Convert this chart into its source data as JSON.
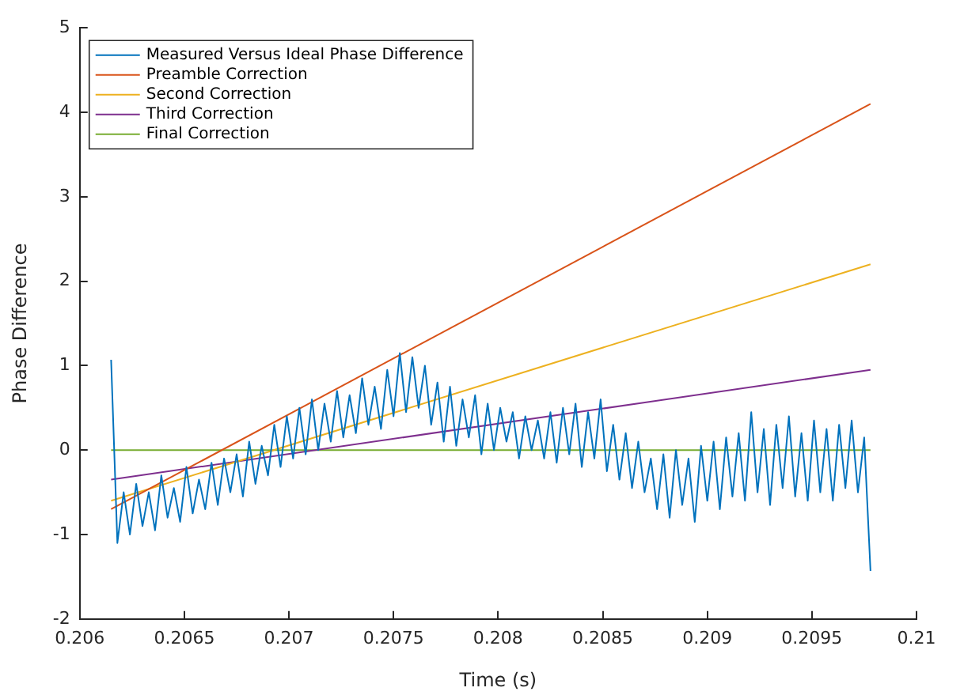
{
  "chart_data": {
    "type": "line",
    "xlabel": "Time (s)",
    "ylabel": "Phase Difference",
    "xlim": [
      0.206,
      0.21
    ],
    "xticks": [
      0.206,
      0.2065,
      0.207,
      0.2075,
      0.208,
      0.2085,
      0.209,
      0.2095,
      0.21
    ],
    "ylim": [
      -2,
      5
    ],
    "yticks": [
      -2,
      -1,
      0,
      1,
      2,
      3,
      4,
      5
    ],
    "grid": false,
    "legend": "top left",
    "marker": "none",
    "line_style": "solid",
    "series": [
      {
        "name": "Measured Versus Ideal Phase Difference",
        "color": "#0072bd",
        "x": [
          0.20615,
          0.20618,
          0.20621,
          0.20624,
          0.20627,
          0.2063,
          0.20633,
          0.20636,
          0.20639,
          0.20642,
          0.20645,
          0.20648,
          0.20651,
          0.20654,
          0.20657,
          0.2066,
          0.20663,
          0.20666,
          0.20669,
          0.20672,
          0.20675,
          0.20678,
          0.20681,
          0.20684,
          0.20687,
          0.2069,
          0.20693,
          0.20696,
          0.20699,
          0.20702,
          0.20705,
          0.20708,
          0.20711,
          0.20714,
          0.20717,
          0.2072,
          0.20723,
          0.20726,
          0.20729,
          0.20732,
          0.20735,
          0.20738,
          0.20741,
          0.20744,
          0.20747,
          0.2075,
          0.20753,
          0.20756,
          0.20759,
          0.20762,
          0.20765,
          0.20768,
          0.20771,
          0.20774,
          0.20777,
          0.2078,
          0.20783,
          0.20786,
          0.20789,
          0.20792,
          0.20795,
          0.20798,
          0.20801,
          0.20804,
          0.20807,
          0.2081,
          0.20813,
          0.20816,
          0.20819,
          0.20822,
          0.20825,
          0.20828,
          0.20831,
          0.20834,
          0.20837,
          0.2084,
          0.20843,
          0.20846,
          0.20849,
          0.20852,
          0.20855,
          0.20858,
          0.20861,
          0.20864,
          0.20867,
          0.2087,
          0.20873,
          0.20876,
          0.20879,
          0.20882,
          0.20885,
          0.20888,
          0.20891,
          0.20894,
          0.20897,
          0.209,
          0.20903,
          0.20906,
          0.20909,
          0.20912,
          0.20915,
          0.20918,
          0.20921,
          0.20924,
          0.20927,
          0.2093,
          0.20933,
          0.20936,
          0.20939,
          0.20942,
          0.20945,
          0.20948,
          0.20951,
          0.20954,
          0.20957,
          0.2096,
          0.20963,
          0.20966,
          0.20969,
          0.20972,
          0.20975,
          0.20978
        ],
        "values": [
          1.07,
          -1.1,
          -0.5,
          -1.0,
          -0.4,
          -0.9,
          -0.5,
          -0.95,
          -0.3,
          -0.8,
          -0.45,
          -0.85,
          -0.2,
          -0.75,
          -0.35,
          -0.7,
          -0.15,
          -0.65,
          -0.1,
          -0.5,
          -0.05,
          -0.55,
          0.1,
          -0.4,
          0.05,
          -0.3,
          0.3,
          -0.2,
          0.4,
          -0.1,
          0.5,
          -0.05,
          0.6,
          0.0,
          0.55,
          0.1,
          0.7,
          0.15,
          0.65,
          0.2,
          0.85,
          0.3,
          0.75,
          0.25,
          0.95,
          0.4,
          1.15,
          0.45,
          1.1,
          0.5,
          1.0,
          0.3,
          0.8,
          0.1,
          0.75,
          0.05,
          0.6,
          0.15,
          0.65,
          -0.05,
          0.55,
          0.0,
          0.5,
          0.1,
          0.45,
          -0.1,
          0.4,
          0.0,
          0.35,
          -0.1,
          0.45,
          -0.15,
          0.5,
          -0.05,
          0.55,
          -0.2,
          0.45,
          -0.1,
          0.6,
          -0.25,
          0.3,
          -0.35,
          0.2,
          -0.45,
          0.1,
          -0.5,
          -0.1,
          -0.7,
          -0.05,
          -0.8,
          0.0,
          -0.65,
          -0.1,
          -0.85,
          0.05,
          -0.6,
          0.1,
          -0.7,
          0.15,
          -0.55,
          0.2,
          -0.6,
          0.45,
          -0.5,
          0.25,
          -0.65,
          0.3,
          -0.45,
          0.4,
          -0.55,
          0.2,
          -0.6,
          0.35,
          -0.5,
          0.25,
          -0.6,
          0.3,
          -0.45,
          0.35,
          -0.5,
          0.15,
          -1.43
        ]
      },
      {
        "name": "Preamble Correction",
        "color": "#d95319",
        "x": [
          0.20615,
          0.20978
        ],
        "values": [
          -0.7,
          4.1
        ]
      },
      {
        "name": "Second Correction",
        "color": "#edb120",
        "x": [
          0.20615,
          0.20978
        ],
        "values": [
          -0.6,
          2.2
        ]
      },
      {
        "name": "Third Correction",
        "color": "#7e2f8e",
        "x": [
          0.20615,
          0.20978
        ],
        "values": [
          -0.35,
          0.95
        ]
      },
      {
        "name": "Final Correction",
        "color": "#77ac30",
        "x": [
          0.20615,
          0.20978
        ],
        "values": [
          0,
          0
        ]
      }
    ]
  }
}
